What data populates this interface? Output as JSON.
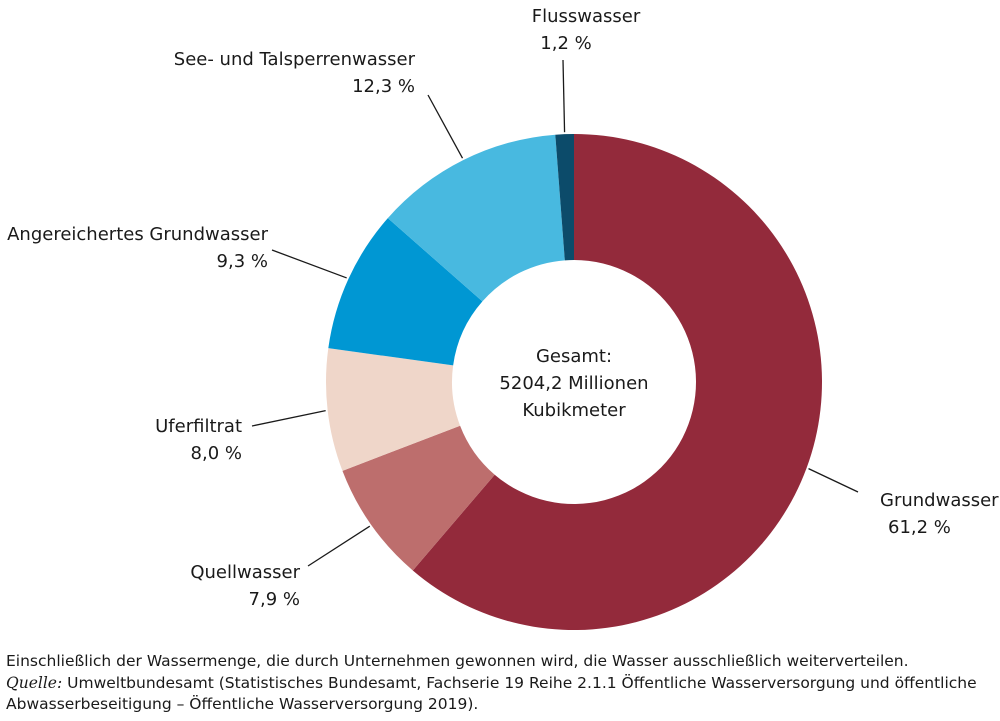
{
  "chart_data": {
    "type": "pie",
    "title": "",
    "center_text": [
      "Gesamt:",
      "5204,2 Millionen",
      "Kubikmeter"
    ],
    "slices": [
      {
        "name": "Grundwasser",
        "value": 61.2,
        "label": "61,2 %",
        "color": "#932a3b"
      },
      {
        "name": "Quellwasser",
        "value": 7.9,
        "label": "7,9 %",
        "color": "#bd6e6d"
      },
      {
        "name": "Uferfiltrat",
        "value": 8.0,
        "label": "8,0 %",
        "color": "#efd6c9"
      },
      {
        "name": "Angereichertes Grundwasser",
        "value": 9.3,
        "label": "9,3 %",
        "color": "#0097d3"
      },
      {
        "name": "See- und Talsperrenwasser",
        "value": 12.3,
        "label": "12,3 %",
        "color": "#48b9e0"
      },
      {
        "name": "Flusswasser",
        "value": 1.2,
        "label": "1,2 %",
        "color": "#0c4b6a"
      }
    ],
    "legend": "none (direct labels)"
  },
  "footnote": {
    "note": "Einschließlich der Wassermenge, die durch Unternehmen gewonnen wird, die Wasser ausschließlich weiterverteilen.",
    "source_label": "Quelle:",
    "source_text": "Umweltbundesamt (Statistisches Bundesamt, Fachserie 19 Reihe 2.1.1 Öffentliche Wasserversorgung und öffentliche Abwasserbeseitigung – Öffentliche Wasserversorgung 2019)."
  }
}
